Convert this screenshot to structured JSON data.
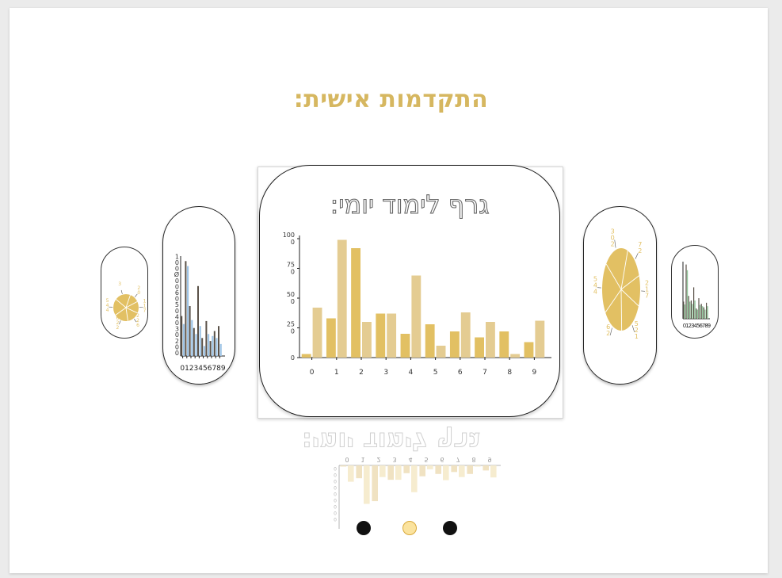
{
  "page": {
    "title": "התקדמות אישית:"
  },
  "main_chart": {
    "title": "גרף לימוד יומי:"
  },
  "reflection": {
    "title": "גרף לימוד יומי:"
  },
  "colors": {
    "gold": "#e2c063",
    "gold_light": "#e4cc92",
    "title_gold": "#d6b760",
    "dark_bar": "#5a5148",
    "blue_bar": "#9ec4e6",
    "green_bar": "#8fc59a",
    "dot_active_fill": "#fbe39e",
    "dot_active_border": "#d9a93a",
    "dot_inactive": "#111111"
  },
  "pagination": {
    "count": 3,
    "active_index": 1
  },
  "chart_data": [
    {
      "type": "bar",
      "categories": [
        "0",
        "1",
        "2",
        "3",
        "4",
        "5",
        "6",
        "7",
        "8",
        "9"
      ],
      "series": [
        {
          "values": [
            3,
            33,
            92,
            37,
            20,
            28,
            22,
            17,
            22,
            13
          ]
        },
        {
          "values": [
            42,
            99,
            30,
            37,
            69,
            10,
            38,
            30,
            3,
            31
          ]
        }
      ],
      "yticks": [
        "0",
        "25\n0",
        "50\n0",
        "75\n0",
        "100\n0"
      ],
      "ylim": [
        0,
        100
      ]
    },
    {
      "type": "bar",
      "categories": [
        "0",
        "1",
        "2",
        "3",
        "4",
        "5",
        "6",
        "7",
        "8",
        "9"
      ],
      "series": [
        {
          "values": [
            40,
            95,
            50,
            28,
            70,
            18,
            35,
            15,
            25,
            30
          ]
        },
        {
          "values": [
            32,
            90,
            36,
            22,
            30,
            10,
            22,
            20,
            18,
            12
          ]
        }
      ],
      "yticks": [
        "0",
        "0",
        "2",
        "0",
        "3",
        "0",
        "4",
        "0",
        "5",
        "0",
        "6",
        "0",
        "0",
        "Ø",
        "0",
        "0",
        "1"
      ],
      "xtick_text": "0123456789"
    },
    {
      "type": "bar",
      "categories": [
        "0",
        "1",
        "2",
        "3",
        "4",
        "5",
        "6",
        "7",
        "8",
        "9"
      ],
      "series": [
        {
          "values": [
            30,
            95,
            40,
            32,
            55,
            18,
            36,
            26,
            20,
            28
          ]
        },
        {
          "values": [
            25,
            85,
            30,
            26,
            32,
            16,
            24,
            22,
            16,
            22
          ]
        }
      ],
      "xtick_text": "0123456789"
    },
    {
      "type": "pie",
      "slices": [
        {
          "label": "7\n2",
          "value": 14
        },
        {
          "label": "2\n1\n7",
          "value": 12
        },
        {
          "label": "5\n2\n1",
          "value": 18
        },
        {
          "label": "6\n2",
          "value": 16
        },
        {
          "label": "5\n4\n4",
          "value": 20
        },
        {
          "label": "3\n0\n2",
          "value": 20
        }
      ]
    },
    {
      "type": "pie",
      "slices": [
        {
          "label": "2\n0",
          "value": 12
        },
        {
          "label": "1\n1\n7",
          "value": 14
        },
        {
          "label": "2\n2\n6",
          "value": 16
        },
        {
          "label": "6\n2\n2",
          "value": 18
        },
        {
          "label": "5\n4\n4",
          "value": 20
        },
        {
          "label": "3",
          "value": 20
        }
      ]
    }
  ]
}
